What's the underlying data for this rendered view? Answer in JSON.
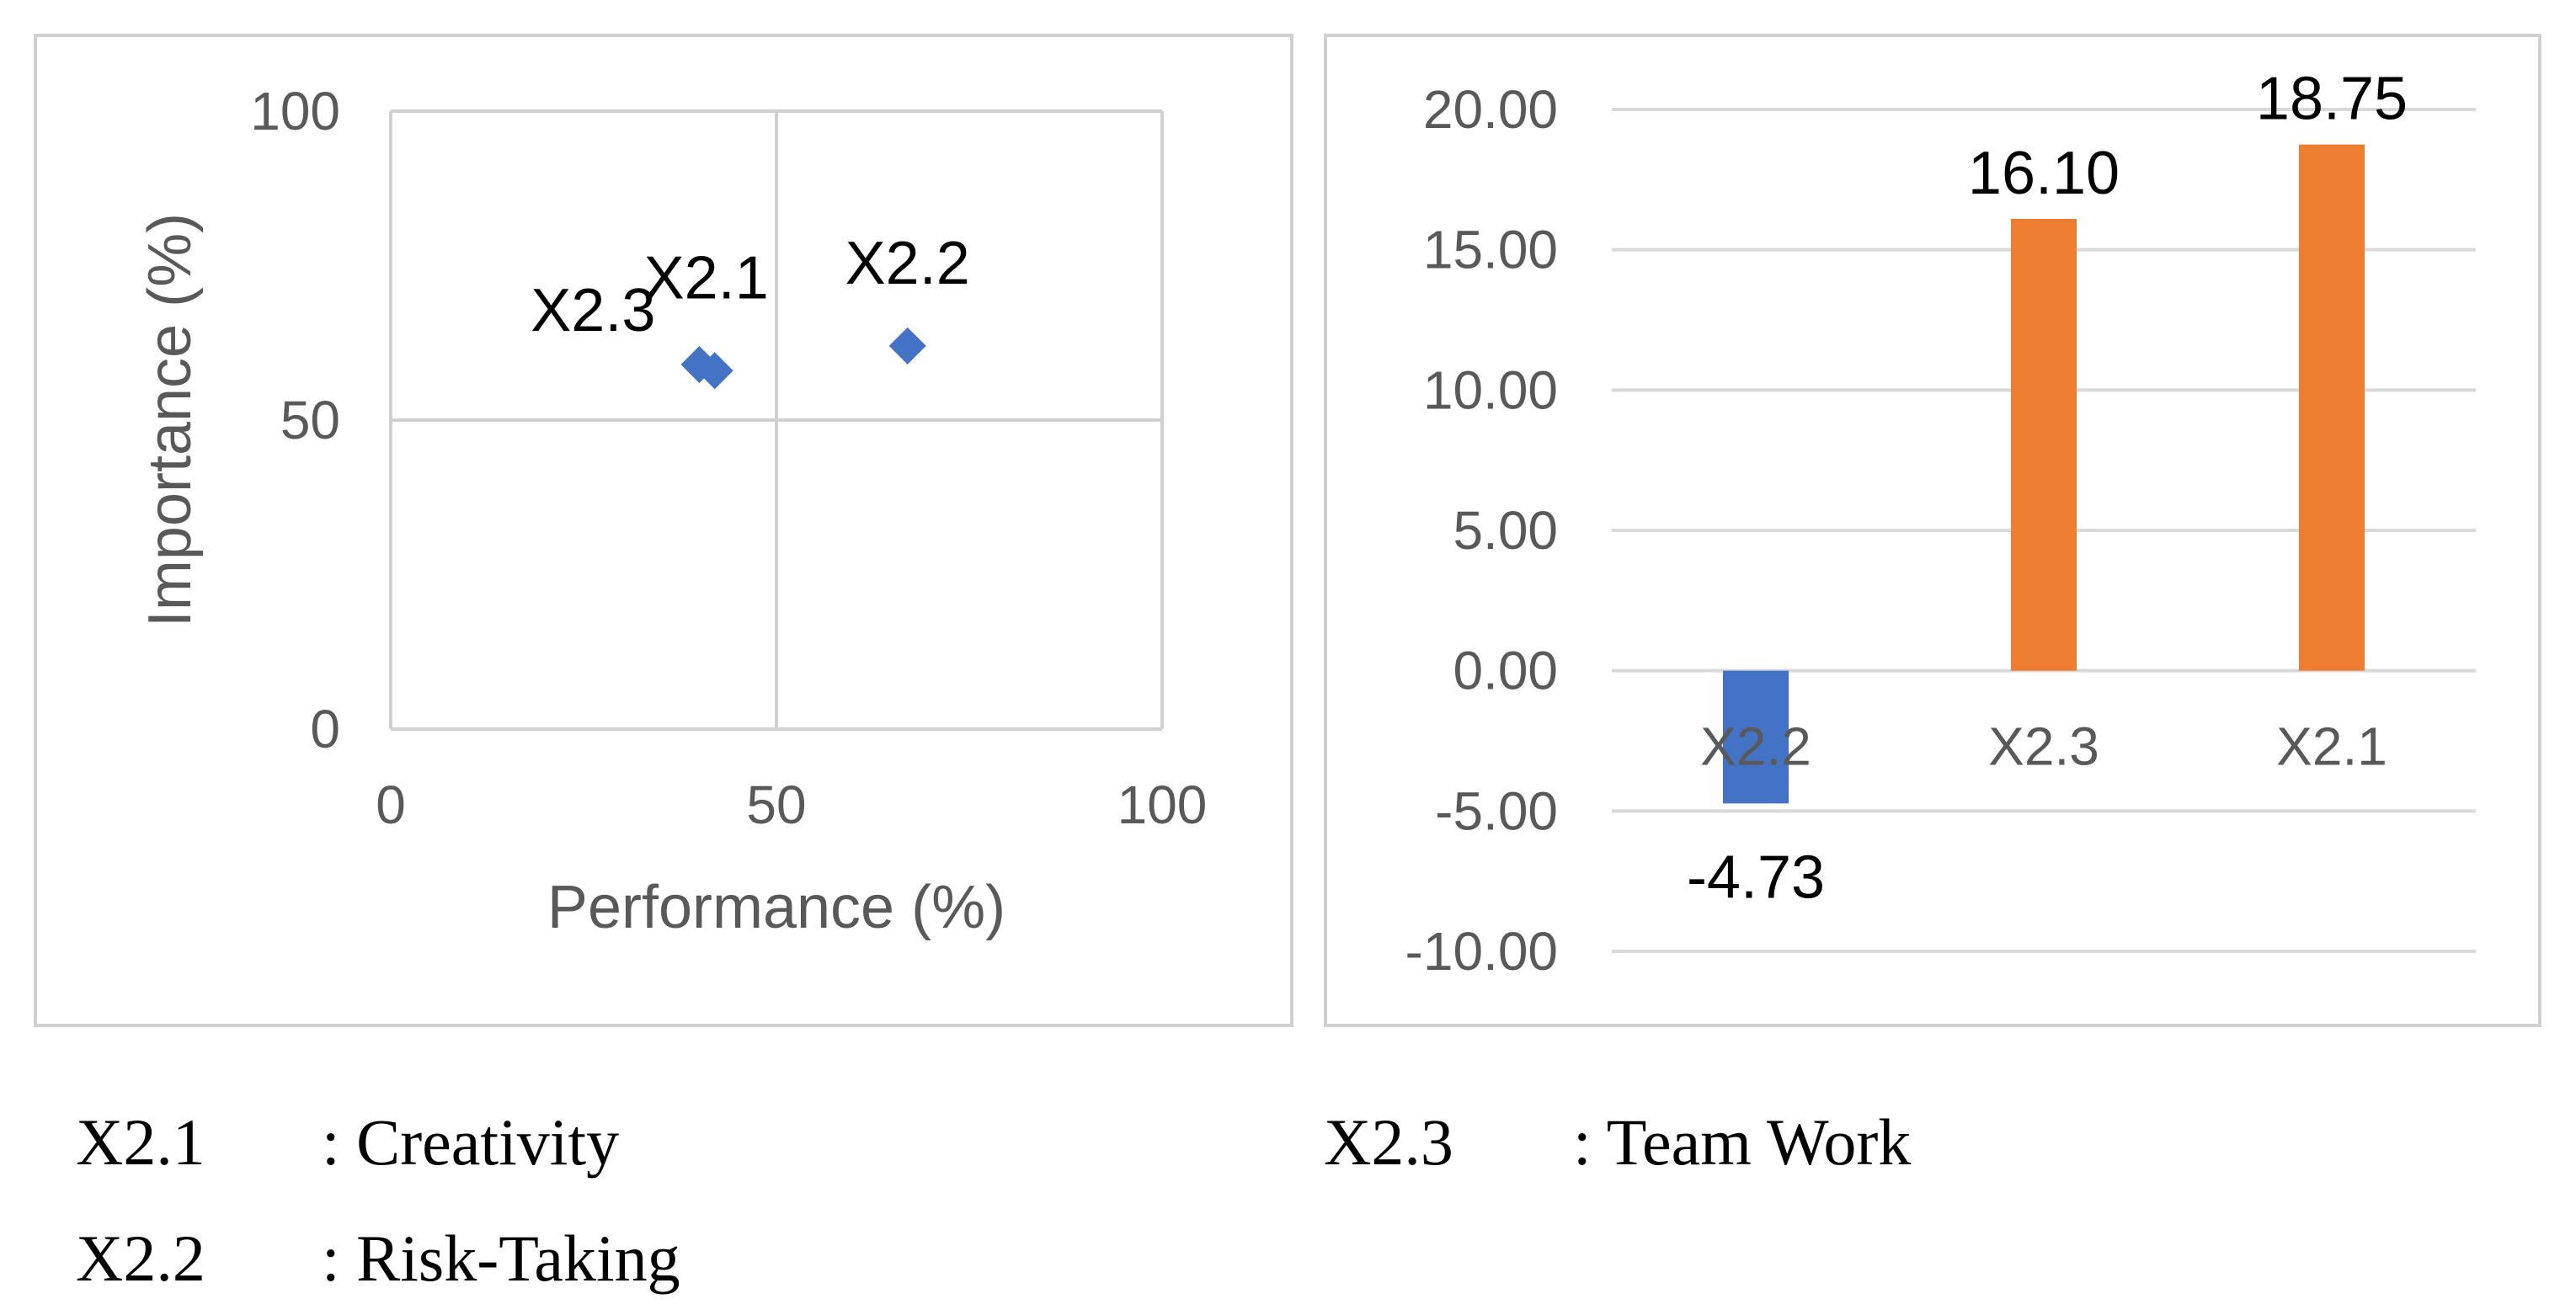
{
  "chart_data": [
    {
      "type": "scatter",
      "xlabel": "Performance (%)",
      "ylabel": "Importance (%)",
      "xlim": [
        0,
        100
      ],
      "ylim": [
        0,
        100
      ],
      "xticks": [
        "0",
        "50",
        "100"
      ],
      "yticks": [
        "0",
        "50",
        "100"
      ],
      "grid": true,
      "marker_color": "#4472c4",
      "points": [
        {
          "label": "X2.1",
          "x": 42,
          "y": 58
        },
        {
          "label": "X2.2",
          "x": 67,
          "y": 62
        },
        {
          "label": "X2.3",
          "x": 40,
          "y": 59
        }
      ]
    },
    {
      "type": "bar",
      "categories": [
        "X2.2",
        "X2.3",
        "X2.1"
      ],
      "values": [
        -4.73,
        16.1,
        18.75
      ],
      "value_labels": [
        "-4.73",
        "16.10",
        "18.75"
      ],
      "colors": [
        "#4472c4",
        "#ed7d31",
        "#ed7d31"
      ],
      "ylim": [
        -10,
        20
      ],
      "yticks": [
        "-10.00",
        "-5.00",
        "0.00",
        "5.00",
        "10.00",
        "15.00",
        "20.00"
      ],
      "grid": true
    }
  ],
  "legend": [
    {
      "code": "X2.1",
      "desc": ": Creativity"
    },
    {
      "code": "X2.2",
      "desc": ": Risk-Taking"
    },
    {
      "code": "X2.3",
      "desc": ": Team Work"
    }
  ]
}
